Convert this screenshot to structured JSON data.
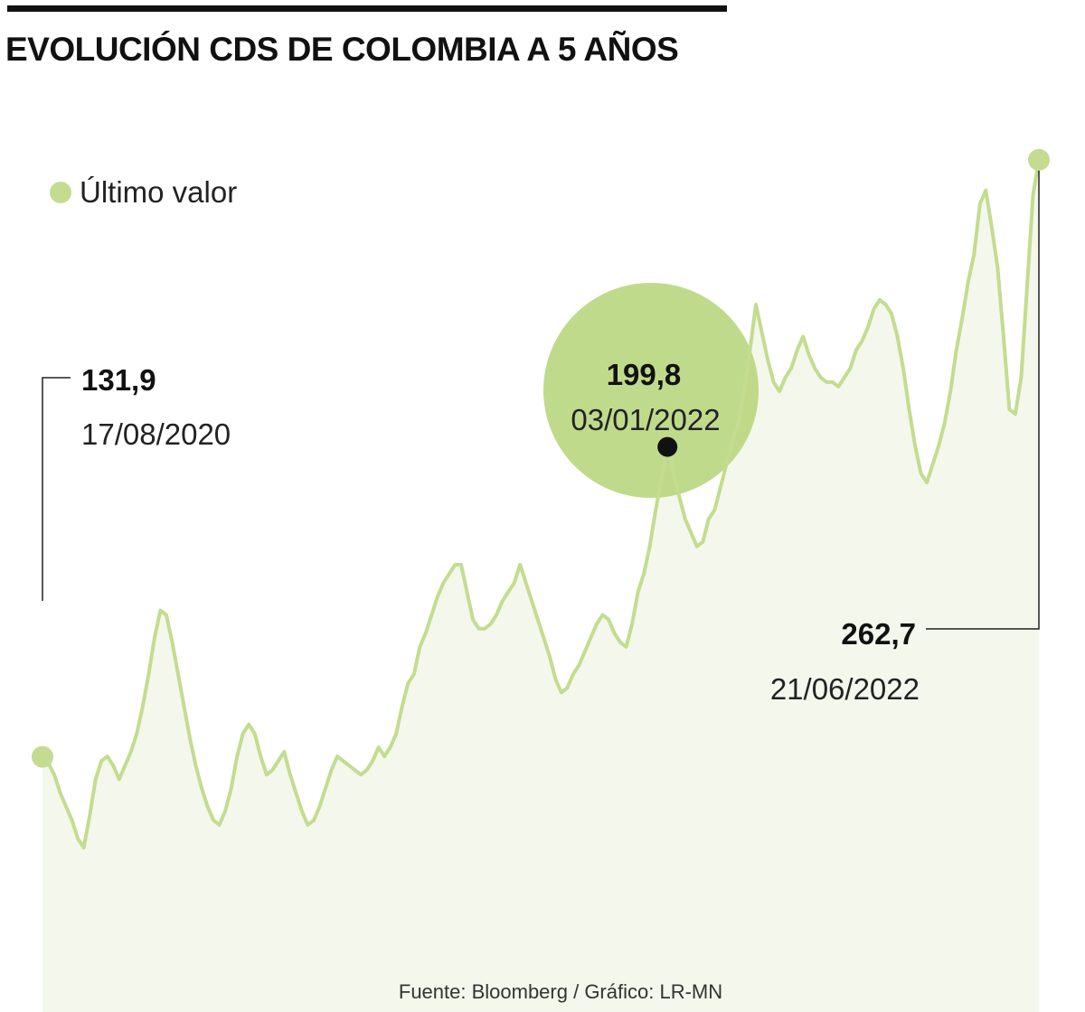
{
  "title": "EVOLUCIÓN CDS DE COLOMBIA A 5 AÑOS",
  "legend": {
    "label": "Último valor",
    "color": "#c4dc8f"
  },
  "source": "Fuente: Bloomberg / Gráfico: LR-MN",
  "colors": {
    "line": "#c4dc8f",
    "area": "#f3f7ec",
    "highlight": "#b5d478",
    "text": "#111111"
  },
  "annotations": {
    "start": {
      "value": "131,9",
      "date": "17/08/2020"
    },
    "mid": {
      "value": "199,8",
      "date": "03/01/2022"
    },
    "end": {
      "value": "262,7",
      "date": "21/06/2022"
    }
  },
  "chart_data": {
    "type": "area",
    "x_start": "17/08/2020",
    "x_end": "21/06/2022",
    "series": [
      {
        "values": [
          131.9,
          130.5,
          128,
          124,
          121,
          118,
          114,
          112,
          119,
          127,
          131,
          132,
          130,
          127,
          130,
          133,
          137,
          143,
          150,
          158,
          164,
          163,
          157,
          150,
          143,
          136,
          130,
          125,
          121,
          118,
          117,
          120,
          125,
          132,
          137,
          139,
          137,
          132,
          128,
          129,
          131,
          133,
          128,
          124,
          120,
          117,
          118,
          121,
          125,
          129,
          132,
          131,
          130,
          129,
          128,
          129,
          131,
          134,
          132,
          134,
          137,
          143,
          148,
          150,
          156,
          159,
          163,
          167,
          170,
          172,
          174,
          174,
          168,
          162,
          160,
          160,
          161,
          163,
          166,
          168,
          170,
          174,
          170,
          166,
          162,
          158,
          154,
          149,
          146,
          147,
          150,
          152,
          155,
          158,
          161,
          163,
          162,
          159,
          157,
          156,
          161,
          168,
          172,
          178,
          186,
          193,
          199.8,
          194,
          189,
          184,
          181,
          178,
          179,
          184,
          186,
          191,
          196,
          201,
          205,
          212,
          221,
          231,
          225,
          219,
          214,
          212,
          215,
          217,
          221,
          224,
          220,
          217,
          215,
          214,
          214,
          213,
          215,
          217,
          221,
          223,
          226,
          230,
          232,
          231,
          229,
          224,
          217,
          208,
          200,
          194,
          192,
          196,
          200,
          205,
          212,
          221,
          228,
          236,
          242,
          253,
          256,
          248,
          239,
          224,
          208,
          207,
          215,
          235,
          255,
          262.7
        ]
      }
    ],
    "ylim": [
      95,
      270
    ],
    "grid": false,
    "legend_position": "top-left",
    "highlight_point": {
      "date": "03/01/2022",
      "value": 199.8
    },
    "last_value": {
      "date": "21/06/2022",
      "value": 262.7
    }
  }
}
